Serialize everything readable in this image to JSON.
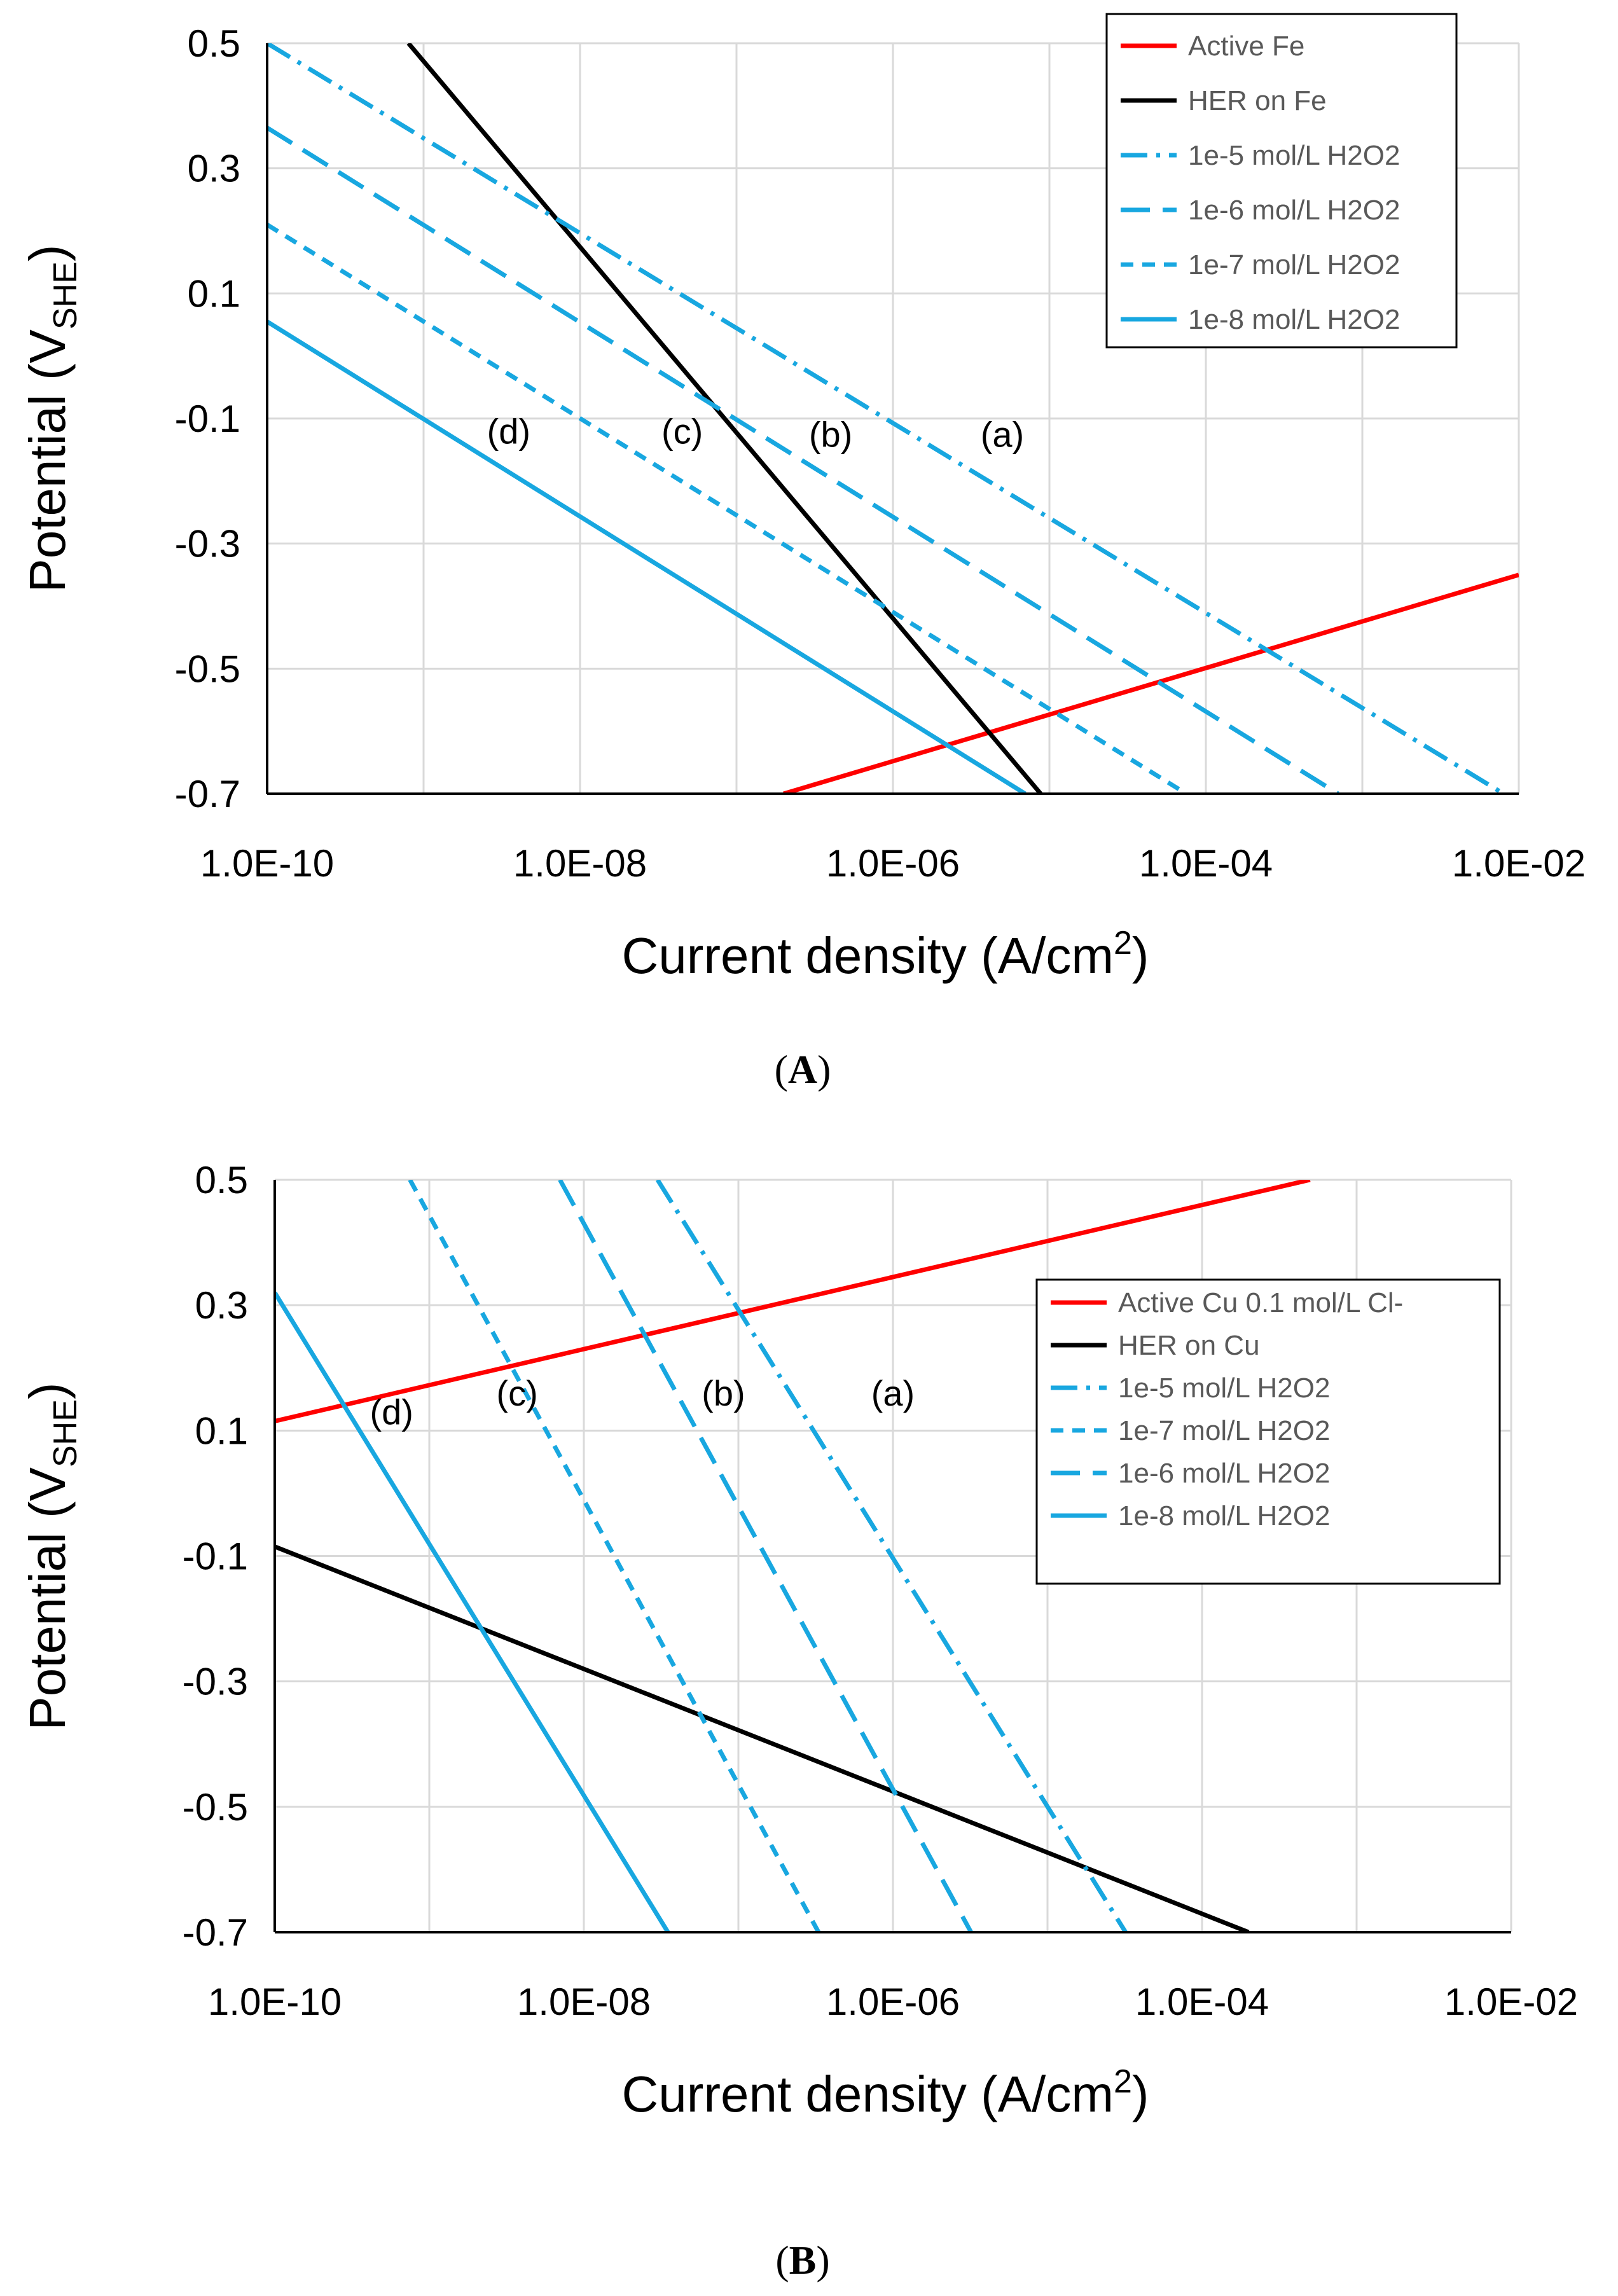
{
  "figure": {
    "colors": {
      "red": "#ff0000",
      "black": "#000000",
      "blue": "#18a7e0",
      "grid": "#d9d9d9"
    }
  },
  "chart_data": [
    {
      "type": "line",
      "id": "A",
      "panel_label": "A",
      "title": "",
      "xscale": "log",
      "xlim": [
        1e-10,
        0.01
      ],
      "ylim": [
        -0.7,
        0.5
      ],
      "xlabel": "Current density (A/cm2)",
      "xlabel_main": "Current density (A/cm",
      "xlabel_sup": "2",
      "xlabel_end": ")",
      "ylabel": "Potential (VSHE)",
      "ylabel_main": "Potential (V",
      "ylabel_sub": "SHE",
      "ylabel_end": ")",
      "xticks": [
        1e-10,
        1e-08,
        1e-06,
        0.0001,
        0.01
      ],
      "xtick_labels": [
        "1.0E-10",
        "1.0E-08",
        "1.0E-06",
        "1.0E-04",
        "1.0E-02"
      ],
      "yticks": [
        0.5,
        0.3,
        0.1,
        -0.1,
        -0.3,
        -0.5,
        -0.7
      ],
      "ytick_labels": [
        "0.5",
        "0.3",
        "0.1",
        "-0.1",
        "-0.3",
        "-0.5",
        "-0.7"
      ],
      "grid": true,
      "legend_position": "top-right",
      "series": [
        {
          "name": "Active Fe",
          "color": "red",
          "dash": "solid",
          "x": [
            2e-07,
            0.01
          ],
          "y": [
            -0.7,
            -0.35
          ]
        },
        {
          "name": "HER on Fe",
          "color": "black",
          "dash": "solid",
          "x": [
            8e-10,
            8.8e-06
          ],
          "y": [
            0.5,
            -0.7
          ]
        },
        {
          "name": "1e-5 mol/L H2O2",
          "color": "blue",
          "dash": "dashdot",
          "x": [
            1e-10,
            0.008
          ],
          "y": [
            0.5,
            -0.7
          ]
        },
        {
          "name": "1e-6 mol/L H2O2",
          "color": "blue",
          "dash": "longdash",
          "x": [
            1e-10,
            0.0007
          ],
          "y": [
            0.365,
            -0.7
          ]
        },
        {
          "name": "1e-7 mol/L H2O2",
          "color": "blue",
          "dash": "shortdash",
          "x": [
            1e-10,
            7.5e-05
          ],
          "y": [
            0.21,
            -0.7
          ]
        },
        {
          "name": "1e-8 mol/L H2O2",
          "color": "blue",
          "dash": "solid",
          "x": [
            1e-10,
            7e-06
          ],
          "y": [
            0.055,
            -0.7
          ]
        }
      ],
      "annotations": [
        {
          "text": "(a)",
          "x": 5e-06,
          "y": -0.145
        },
        {
          "text": "(b)",
          "x": 4e-07,
          "y": -0.145
        },
        {
          "text": "(c)",
          "x": 4.5e-08,
          "y": -0.14
        },
        {
          "text": "(d)",
          "x": 3.5e-09,
          "y": -0.14
        }
      ]
    },
    {
      "type": "line",
      "id": "B",
      "panel_label": "B",
      "title": "",
      "xscale": "log",
      "xlim": [
        1e-10,
        0.01
      ],
      "ylim": [
        -0.7,
        0.5
      ],
      "xlabel": "Current density (A/cm2)",
      "xlabel_main": "Current density (A/cm",
      "xlabel_sup": "2",
      "xlabel_end": ")",
      "ylabel": "Potential (VSHE)",
      "ylabel_main": "Potential (V",
      "ylabel_sub": "SHE",
      "ylabel_end": ")",
      "xticks": [
        1e-10,
        1e-08,
        1e-06,
        0.0001,
        0.01
      ],
      "xtick_labels": [
        "1.0E-10",
        "1.0E-08",
        "1.0E-06",
        "1.0E-04",
        "1.0E-02"
      ],
      "yticks": [
        0.5,
        0.3,
        0.1,
        -0.1,
        -0.3,
        -0.5,
        -0.7
      ],
      "ytick_labels": [
        "0.5",
        "0.3",
        "0.1",
        "-0.1",
        "-0.3",
        "-0.5",
        "-0.7"
      ],
      "grid": true,
      "legend_position": "upper-right",
      "series": [
        {
          "name": "Active Cu 0.1 mol/L Cl-",
          "color": "red",
          "dash": "solid",
          "x": [
            1e-10,
            0.0005
          ],
          "y": [
            0.115,
            0.5
          ]
        },
        {
          "name": "HER on Cu",
          "color": "black",
          "dash": "solid",
          "x": [
            1e-10,
            0.0002
          ],
          "y": [
            -0.085,
            -0.7
          ]
        },
        {
          "name": "1e-5 mol/L H2O2",
          "color": "blue",
          "dash": "dashdot",
          "x": [
            3e-08,
            3.2e-05
          ],
          "y": [
            0.5,
            -0.7
          ]
        },
        {
          "name": "1e-7 mol/L H2O2",
          "color": "blue",
          "dash": "shortdash",
          "x": [
            7.5e-10,
            3.3e-07
          ],
          "y": [
            0.5,
            -0.7
          ]
        },
        {
          "name": "1e-6 mol/L H2O2",
          "color": "blue",
          "dash": "longdash",
          "x": [
            7e-09,
            3.2e-06
          ],
          "y": [
            0.5,
            -0.7
          ]
        },
        {
          "name": "1e-8 mol/L H2O2",
          "color": "blue",
          "dash": "solid",
          "x": [
            1e-10,
            3.5e-08
          ],
          "y": [
            0.32,
            -0.7
          ]
        }
      ],
      "annotations": [
        {
          "text": "(a)",
          "x": 1e-06,
          "y": 0.14
        },
        {
          "text": "(b)",
          "x": 8e-08,
          "y": 0.14
        },
        {
          "text": "(c)",
          "x": 3.7e-09,
          "y": 0.14
        },
        {
          "text": "(d)",
          "x": 5.7e-10,
          "y": 0.11
        }
      ]
    }
  ]
}
